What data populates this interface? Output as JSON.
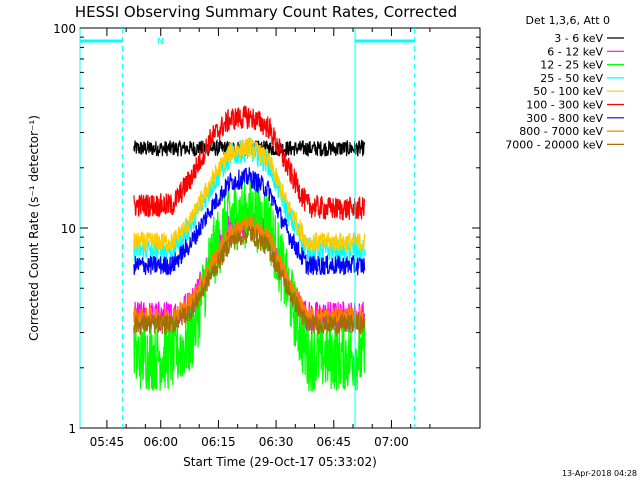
{
  "chart_data": {
    "type": "line",
    "title": "HESSI Observing Summary Count Rates, Corrected",
    "xlabel": "Start Time (29-Oct-17 05:33:02)",
    "ylabel": "Corrected Count Rate (s⁻¹ detector⁻¹)",
    "yscale": "log",
    "ylim": [
      1,
      100
    ],
    "xlim_minutes": [
      5.97,
      110.0
    ],
    "x_ticks": [
      {
        "minute": 12.97,
        "label": "05:45"
      },
      {
        "minute": 26.97,
        "label": "06:00"
      },
      {
        "minute": 41.97,
        "label": "06:15"
      },
      {
        "minute": 56.97,
        "label": "06:30"
      },
      {
        "minute": 71.97,
        "label": "06:45"
      },
      {
        "minute": 86.97,
        "label": "07:00"
      }
    ],
    "y_ticks": [
      {
        "value": 1,
        "label": "1"
      },
      {
        "value": 10,
        "label": "10"
      },
      {
        "value": 100,
        "label": "100"
      }
    ],
    "legend_title": "Det 1,3,6, Att 0",
    "legend_position": "right",
    "grid": false,
    "data_range_minutes": [
      20.0,
      80.0
    ],
    "series": [
      {
        "name": "3 - 6 keV",
        "color": "#000000",
        "x": [
          20,
          30,
          40,
          50,
          60,
          70,
          80
        ],
        "y": [
          25,
          25,
          25,
          25,
          25,
          25,
          25
        ],
        "noise": 0.04
      },
      {
        "name": "6 - 12 keV",
        "color": "#ff00ff",
        "x": [
          20,
          30,
          35,
          40,
          45,
          50,
          55,
          60,
          65,
          70,
          80
        ],
        "y": [
          3.6,
          3.6,
          4.2,
          7.0,
          10.0,
          10.5,
          9.0,
          5.0,
          3.6,
          3.6,
          3.6
        ],
        "noise": 0.08
      },
      {
        "name": "12 - 25 keV",
        "color": "#00ff00",
        "x": [
          20,
          30,
          35,
          40,
          45,
          50,
          55,
          60,
          65,
          70,
          80
        ],
        "y": [
          2.3,
          2.3,
          2.8,
          7.0,
          11.5,
          12.0,
          10.5,
          5.0,
          2.3,
          2.3,
          2.3
        ],
        "noise": 0.18
      },
      {
        "name": "25 - 50 keV",
        "color": "#00ffff",
        "x": [
          20,
          30,
          35,
          40,
          45,
          50,
          55,
          60,
          65,
          70,
          80
        ],
        "y": [
          7.8,
          7.8,
          10.5,
          16.0,
          23.0,
          25.0,
          21.0,
          12.0,
          7.8,
          7.8,
          7.8
        ],
        "noise": 0.06
      },
      {
        "name": "50 - 100 keV",
        "color": "#ffcc00",
        "x": [
          20,
          30,
          35,
          40,
          45,
          50,
          55,
          60,
          65,
          70,
          80
        ],
        "y": [
          8.5,
          8.5,
          11.0,
          17.0,
          24.0,
          25.5,
          22.0,
          13.0,
          8.5,
          8.5,
          8.5
        ],
        "noise": 0.05
      },
      {
        "name": "100 - 300 keV",
        "color": "#ff0000",
        "x": [
          20,
          30,
          35,
          40,
          45,
          50,
          55,
          60,
          65,
          70,
          80
        ],
        "y": [
          13.0,
          13.0,
          18.0,
          28.0,
          35.0,
          36.0,
          32.0,
          20.0,
          13.0,
          12.5,
          12.5
        ],
        "noise": 0.06
      },
      {
        "name": "300 - 800 keV",
        "color": "#0000ff",
        "x": [
          20,
          30,
          35,
          40,
          45,
          50,
          55,
          60,
          65,
          70,
          80
        ],
        "y": [
          6.5,
          6.5,
          8.5,
          12.5,
          17.0,
          18.0,
          15.5,
          9.5,
          6.5,
          6.5,
          6.5
        ],
        "noise": 0.05
      },
      {
        "name": "800 - 7000 keV",
        "color": "#ff8000",
        "x": [
          20,
          30,
          35,
          40,
          45,
          50,
          55,
          60,
          65,
          70,
          80
        ],
        "y": [
          3.6,
          3.6,
          4.3,
          6.5,
          9.5,
          10.5,
          9.0,
          5.5,
          3.6,
          3.6,
          3.6
        ],
        "noise": 0.05
      },
      {
        "name": "7000 - 20000 keV",
        "color": "#a07000",
        "x": [
          20,
          30,
          35,
          40,
          45,
          50,
          55,
          60,
          65,
          70,
          80
        ],
        "y": [
          3.3,
          3.3,
          3.9,
          5.8,
          8.5,
          9.5,
          8.0,
          5.0,
          3.3,
          3.3,
          3.3
        ],
        "noise": 0.05
      }
    ],
    "markers": {
      "night_bars": [
        [
          5.97,
          17.0
        ],
        [
          77.5,
          93.0
        ]
      ],
      "night_label": "N",
      "vertical_lines": [
        {
          "minute": 5.97,
          "style": "solid",
          "color": "#00ffff"
        },
        {
          "minute": 17.0,
          "style": "dashed",
          "color": "#00ffff"
        },
        {
          "minute": 77.5,
          "style": "solid",
          "color": "#00ffff"
        },
        {
          "minute": 93.0,
          "style": "dashed",
          "color": "#00ffff"
        }
      ]
    }
  },
  "footer_date": "13-Apr-2018 04:28"
}
